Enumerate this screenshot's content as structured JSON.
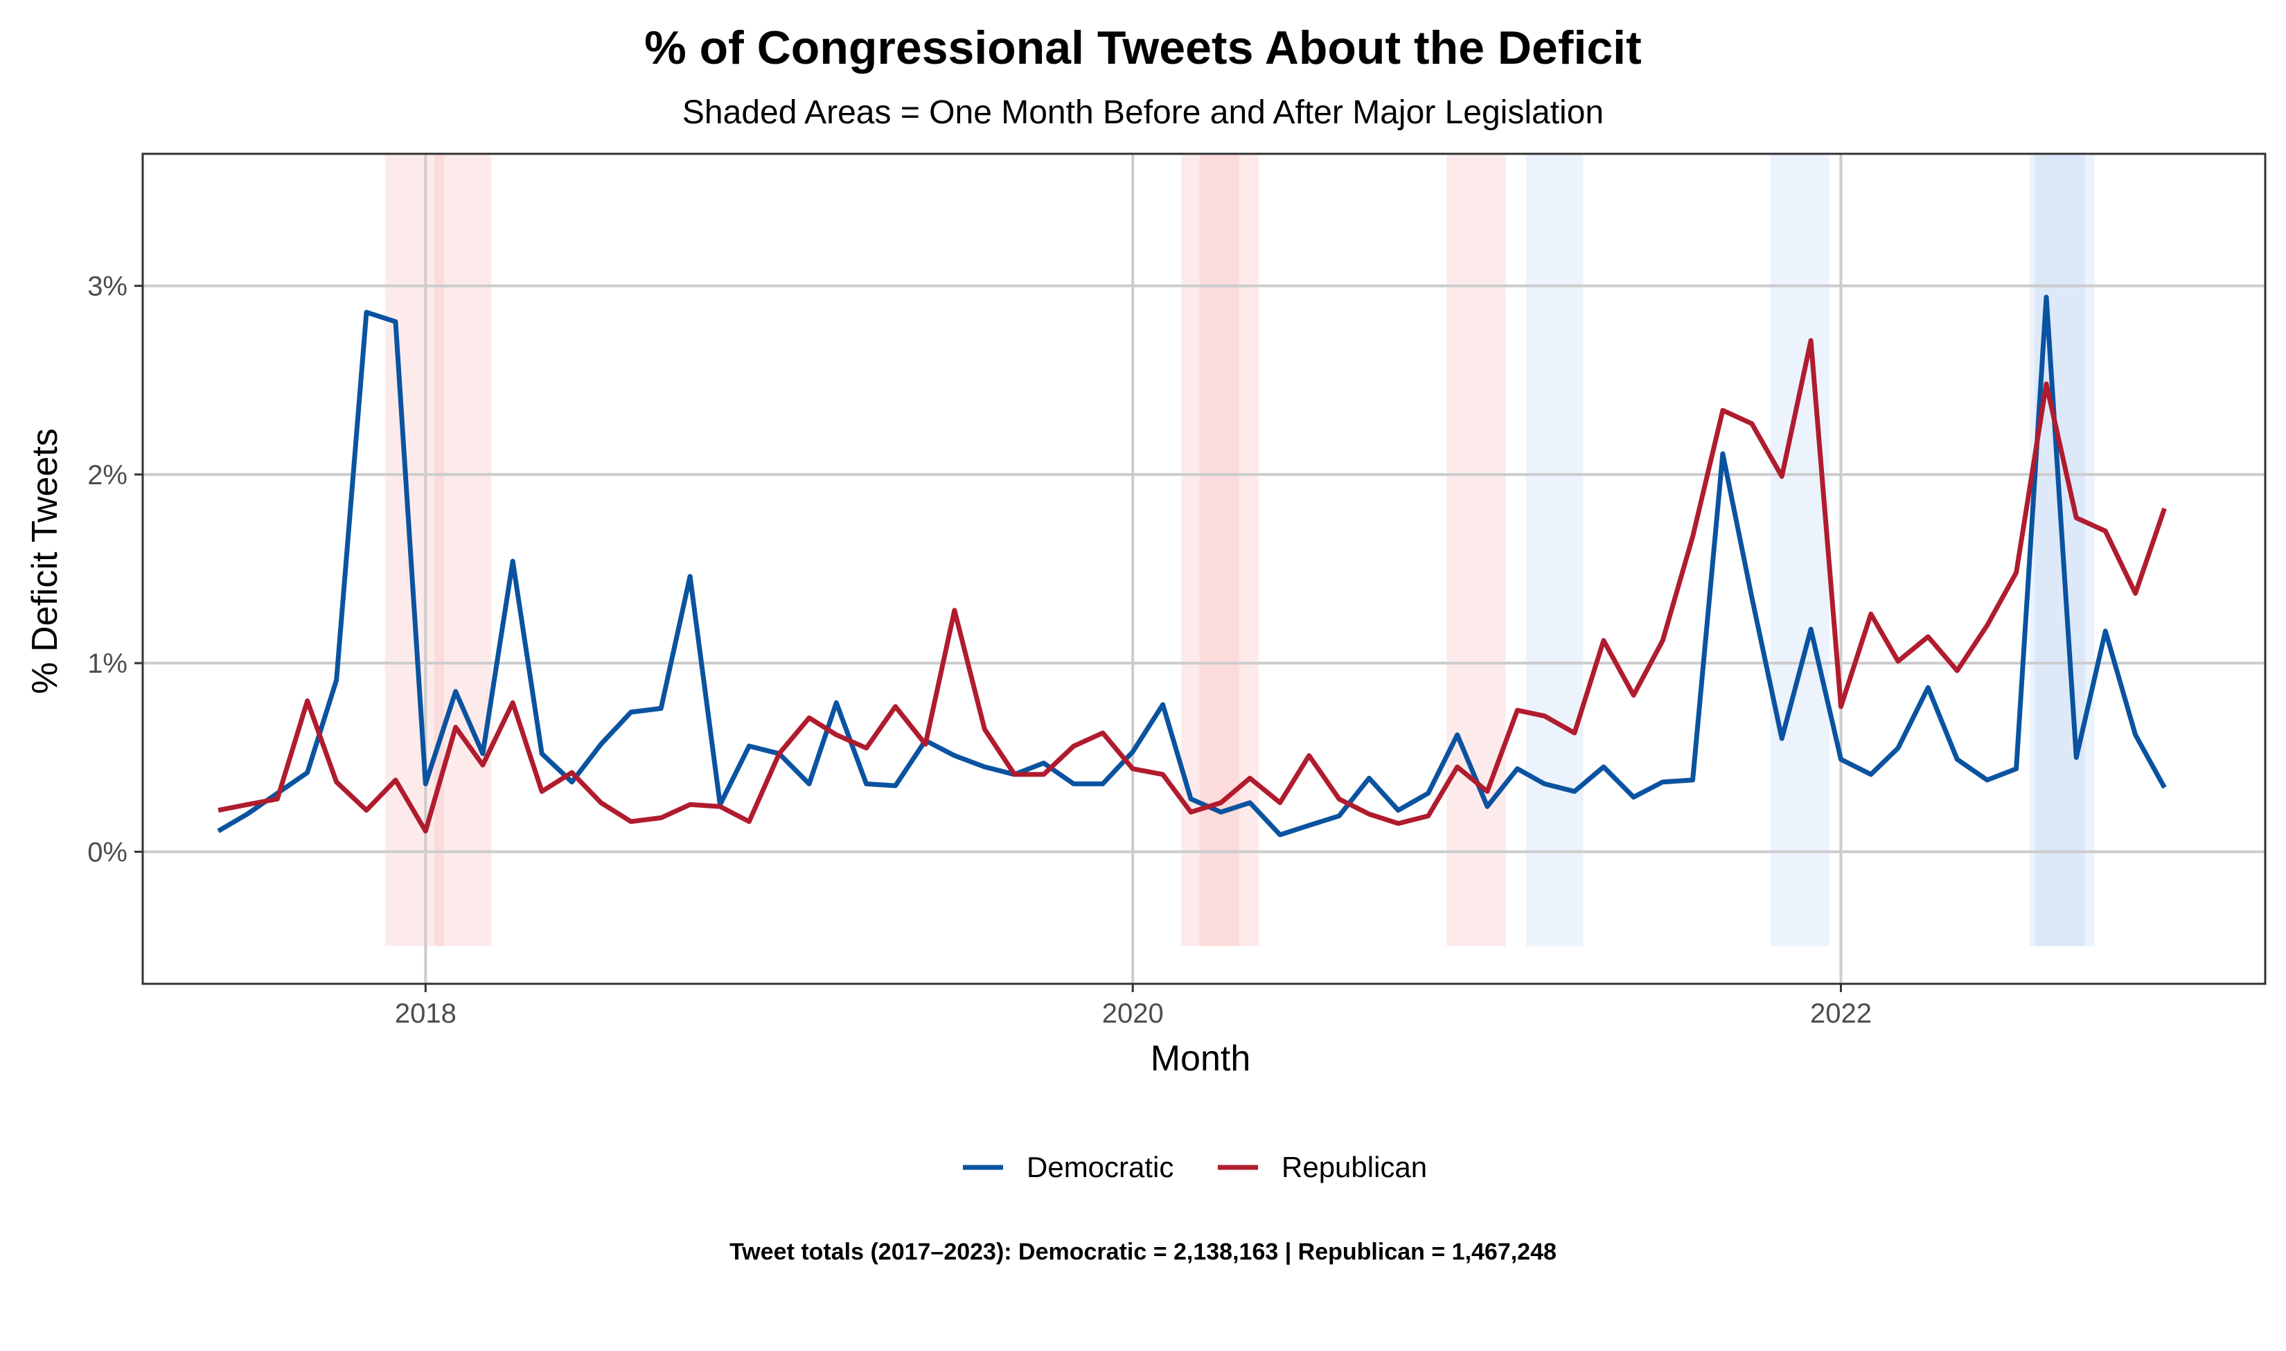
{
  "chart_data": {
    "type": "line",
    "title": "% of Congressional Tweets About the Deficit",
    "subtitle": "Shaded Areas = One Month Before and After Major Legislation",
    "xlabel": "Month",
    "ylabel": "% Deficit Tweets",
    "x_ticks": [
      {
        "value": "2018-01-01",
        "label": "2018"
      },
      {
        "value": "2020-01-01",
        "label": "2020"
      },
      {
        "value": "2022-01-01",
        "label": "2022"
      }
    ],
    "y_ticks": [
      {
        "value": 0,
        "label": "0%"
      },
      {
        "value": 1,
        "label": "1%"
      },
      {
        "value": 2,
        "label": "2%"
      },
      {
        "value": 3,
        "label": "3%"
      }
    ],
    "xlim": [
      "2017-03-15",
      "2023-03-15"
    ],
    "ylim": [
      -0.7,
      3.7
    ],
    "grid": true,
    "legend_position": "bottom",
    "caption": "Tweet totals (2017–2023): Democratic = 2,138,163 | Republican = 1,467,248",
    "shaded_periods": [
      {
        "party": "Republican",
        "start": "2017-11-20",
        "end": "2018-01-20"
      },
      {
        "party": "Republican",
        "start": "2018-01-10",
        "end": "2018-03-10"
      },
      {
        "party": "Republican",
        "start": "2020-02-20",
        "end": "2020-04-20"
      },
      {
        "party": "Republican",
        "start": "2020-03-10",
        "end": "2020-05-10"
      },
      {
        "party": "Republican",
        "start": "2020-11-20",
        "end": "2021-01-20"
      },
      {
        "party": "Democratic",
        "start": "2021-02-10",
        "end": "2021-04-10"
      },
      {
        "party": "Democratic",
        "start": "2021-10-20",
        "end": "2021-12-20"
      },
      {
        "party": "Democratic",
        "start": "2022-07-15",
        "end": "2022-09-10"
      },
      {
        "party": "Democratic",
        "start": "2022-07-20",
        "end": "2022-09-20"
      }
    ],
    "x": [
      "2017-06-01",
      "2017-07-01",
      "2017-08-01",
      "2017-09-01",
      "2017-10-01",
      "2017-11-01",
      "2017-12-01",
      "2018-01-01",
      "2018-02-01",
      "2018-03-01",
      "2018-04-01",
      "2018-05-01",
      "2018-06-01",
      "2018-07-01",
      "2018-08-01",
      "2018-09-01",
      "2018-10-01",
      "2018-11-01",
      "2018-12-01",
      "2019-01-01",
      "2019-02-01",
      "2019-03-01",
      "2019-04-01",
      "2019-05-01",
      "2019-06-01",
      "2019-07-01",
      "2019-08-01",
      "2019-09-01",
      "2019-10-01",
      "2019-11-01",
      "2019-12-01",
      "2020-01-01",
      "2020-02-01",
      "2020-03-01",
      "2020-04-01",
      "2020-05-01",
      "2020-06-01",
      "2020-07-01",
      "2020-08-01",
      "2020-09-01",
      "2020-10-01",
      "2020-11-01",
      "2020-12-01",
      "2021-01-01",
      "2021-02-01",
      "2021-03-01",
      "2021-04-01",
      "2021-05-01",
      "2021-06-01",
      "2021-07-01",
      "2021-08-01",
      "2021-09-01",
      "2021-10-01",
      "2021-11-01",
      "2021-12-01",
      "2022-01-01",
      "2022-02-01",
      "2022-03-01",
      "2022-04-01",
      "2022-05-01",
      "2022-06-01",
      "2022-07-01",
      "2022-08-01",
      "2022-09-01",
      "2022-10-01",
      "2022-11-01",
      "2022-12-01"
    ],
    "series": [
      {
        "name": "Democratic",
        "color": "#0a53a0",
        "values": [
          0.11,
          0.2,
          0.31,
          0.42,
          0.91,
          2.86,
          2.81,
          0.36,
          0.85,
          0.52,
          1.54,
          0.52,
          0.37,
          0.57,
          0.74,
          0.76,
          1.46,
          0.25,
          0.56,
          0.52,
          0.36,
          0.79,
          0.36,
          0.35,
          0.59,
          0.51,
          0.45,
          0.41,
          0.47,
          0.36,
          0.36,
          0.53,
          0.78,
          0.28,
          0.21,
          0.26,
          0.09,
          0.14,
          0.19,
          0.39,
          0.22,
          0.31,
          0.62,
          0.24,
          0.44,
          0.36,
          0.32,
          0.45,
          0.29,
          0.37,
          0.38,
          2.11,
          1.35,
          0.6,
          1.18,
          0.49,
          0.41,
          0.55,
          0.87,
          0.49,
          0.38,
          0.44,
          2.94,
          0.5,
          1.17,
          0.62,
          0.34
        ]
      },
      {
        "name": "Republican",
        "color": "#b01c2e",
        "values": [
          0.22,
          0.25,
          0.28,
          0.8,
          0.37,
          0.22,
          0.38,
          0.11,
          0.66,
          0.46,
          0.79,
          0.32,
          0.42,
          0.26,
          0.16,
          0.18,
          0.25,
          0.24,
          0.16,
          0.52,
          0.71,
          0.62,
          0.55,
          0.77,
          0.57,
          1.28,
          0.65,
          0.41,
          0.41,
          0.56,
          0.63,
          0.44,
          0.41,
          0.21,
          0.26,
          0.39,
          0.26,
          0.51,
          0.28,
          0.2,
          0.15,
          0.19,
          0.45,
          0.32,
          0.75,
          0.72,
          0.63,
          1.12,
          0.83,
          1.12,
          1.67,
          2.34,
          2.27,
          1.99,
          2.71,
          0.77,
          1.26,
          1.01,
          1.14,
          0.96,
          1.2,
          1.48,
          2.48,
          1.77,
          1.7,
          1.37,
          1.82
        ]
      }
    ]
  }
}
